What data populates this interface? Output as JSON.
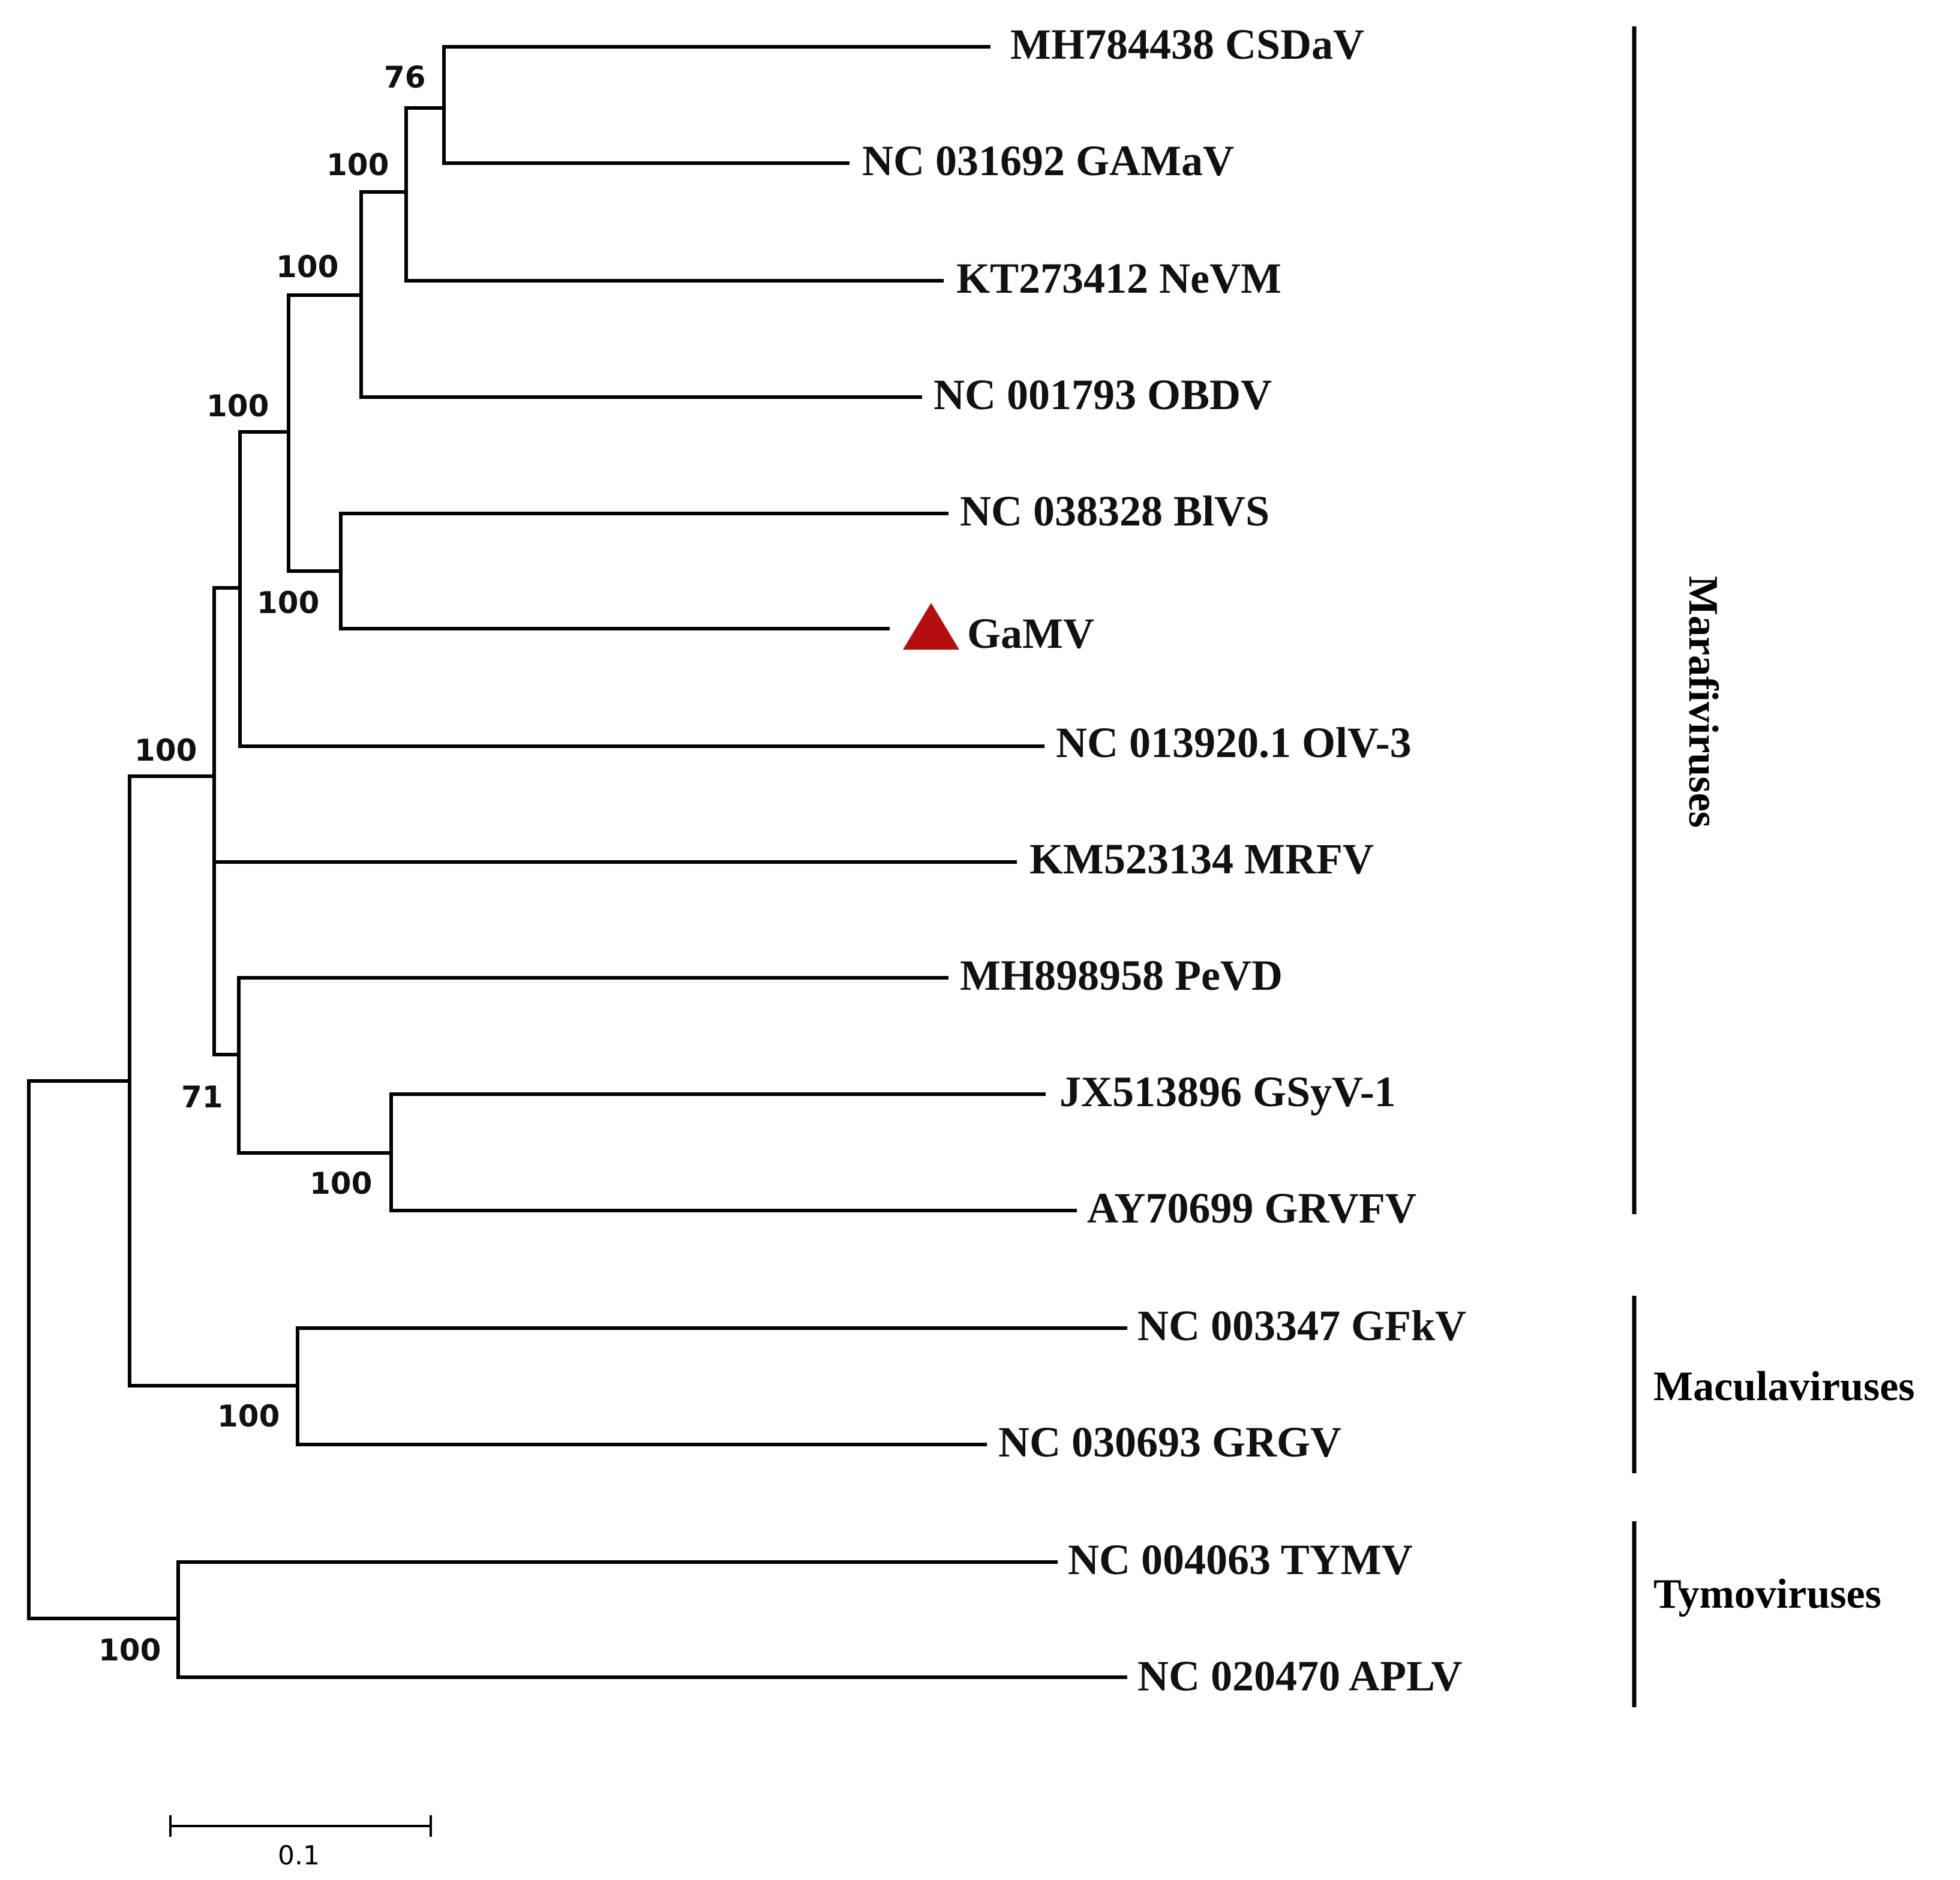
{
  "colors": {
    "marker": "#b30f0f",
    "line": "#000000",
    "text": "#111111"
  },
  "leaves": [
    {
      "id": "csdav",
      "label": "MH784438 CSDaV"
    },
    {
      "id": "gamav",
      "label": "NC 031692 GAMaV"
    },
    {
      "id": "nevm",
      "label": "KT273412 NeVM"
    },
    {
      "id": "obdv",
      "label": "NC 001793 OBDV"
    },
    {
      "id": "blvs",
      "label": "NC 038328 BlVS"
    },
    {
      "id": "gamv",
      "label": "GaMV",
      "marker": "triangle-icon"
    },
    {
      "id": "olv3",
      "label": "NC 013920.1 OlV-3"
    },
    {
      "id": "mrfv",
      "label": "KM523134 MRFV"
    },
    {
      "id": "pevd",
      "label": "MH898958 PeVD"
    },
    {
      "id": "gsyv1",
      "label": "JX513896 GSyV-1"
    },
    {
      "id": "grvfv",
      "label": "AY70699 GRVFV"
    },
    {
      "id": "gfkv",
      "label": "NC 003347 GFkV"
    },
    {
      "id": "grgv",
      "label": "NC 030693 GRGV"
    },
    {
      "id": "tymv",
      "label": "NC 004063 TYMV"
    },
    {
      "id": "aplv",
      "label": "NC 020470 APLV"
    }
  ],
  "bootstrap": [
    {
      "node": "csdav-gamav",
      "value": "76"
    },
    {
      "node": "csdav-gamav-nevm",
      "value": "100"
    },
    {
      "node": "plus-obdv",
      "value": "100"
    },
    {
      "node": "obdv-clade-blvs-clade",
      "value": "100"
    },
    {
      "node": "blvs-gamv",
      "value": "100"
    },
    {
      "node": "marafi-core",
      "value": "100"
    },
    {
      "node": "pevd-gsyv-grvfv",
      "value": "71"
    },
    {
      "node": "gsyv1-grvfv",
      "value": "100"
    },
    {
      "node": "gfkv-grgv",
      "value": "100"
    },
    {
      "node": "tymv-aplv",
      "value": "100"
    }
  ],
  "groups": [
    {
      "id": "marafiviruses",
      "label": "Marafiviruses"
    },
    {
      "id": "maculaviruses",
      "label": "Maculaviruses"
    },
    {
      "id": "tymoviruses",
      "label": "Tymoviruses"
    }
  ],
  "scale_bar": {
    "label": "0.1",
    "length": 0.1
  }
}
